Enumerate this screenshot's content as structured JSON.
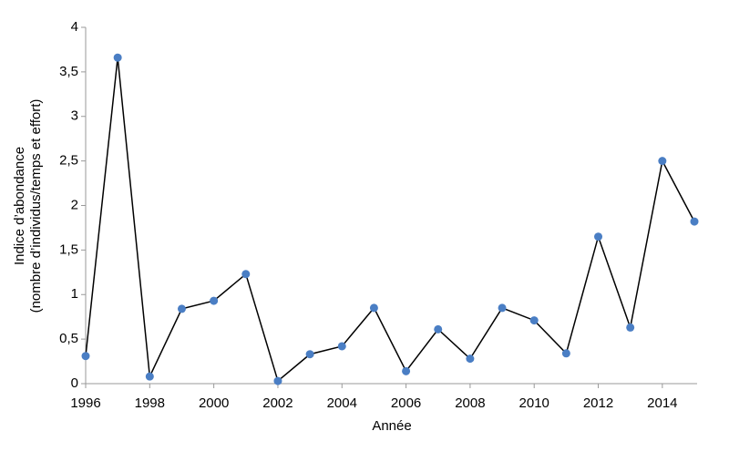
{
  "chart_data": {
    "type": "line",
    "xlabel": "Année",
    "ylabel": [
      "Indice d’abondance",
      "(nombre d’individus/temps et effort)"
    ],
    "x": [
      1996,
      1997,
      1998,
      1999,
      2000,
      2001,
      2002,
      2003,
      2004,
      2005,
      2006,
      2007,
      2008,
      2009,
      2010,
      2011,
      2012,
      2013,
      2014,
      2015
    ],
    "series": [
      {
        "line_color": "#000000",
        "marker_color": "#4a7ec4",
        "values": [
          0.31,
          3.66,
          0.08,
          0.84,
          0.93,
          1.23,
          0.03,
          0.33,
          0.42,
          0.85,
          0.14,
          0.61,
          0.28,
          0.85,
          0.71,
          0.34,
          1.65,
          0.63,
          2.5,
          1.82
        ]
      }
    ],
    "xlim": [
      1996,
      2015
    ],
    "xticks": [
      1996,
      1998,
      2000,
      2002,
      2004,
      2006,
      2008,
      2010,
      2012,
      2014
    ],
    "ylim": [
      0,
      4
    ],
    "yticks": [
      0,
      {
        "value": 0.5,
        "label": "0,5"
      },
      1,
      {
        "value": 1.5,
        "label": "1,5"
      },
      2,
      {
        "value": 2.5,
        "label": "2,5"
      },
      3,
      {
        "value": 3.5,
        "label": "3,5"
      },
      4
    ],
    "grid": false
  }
}
